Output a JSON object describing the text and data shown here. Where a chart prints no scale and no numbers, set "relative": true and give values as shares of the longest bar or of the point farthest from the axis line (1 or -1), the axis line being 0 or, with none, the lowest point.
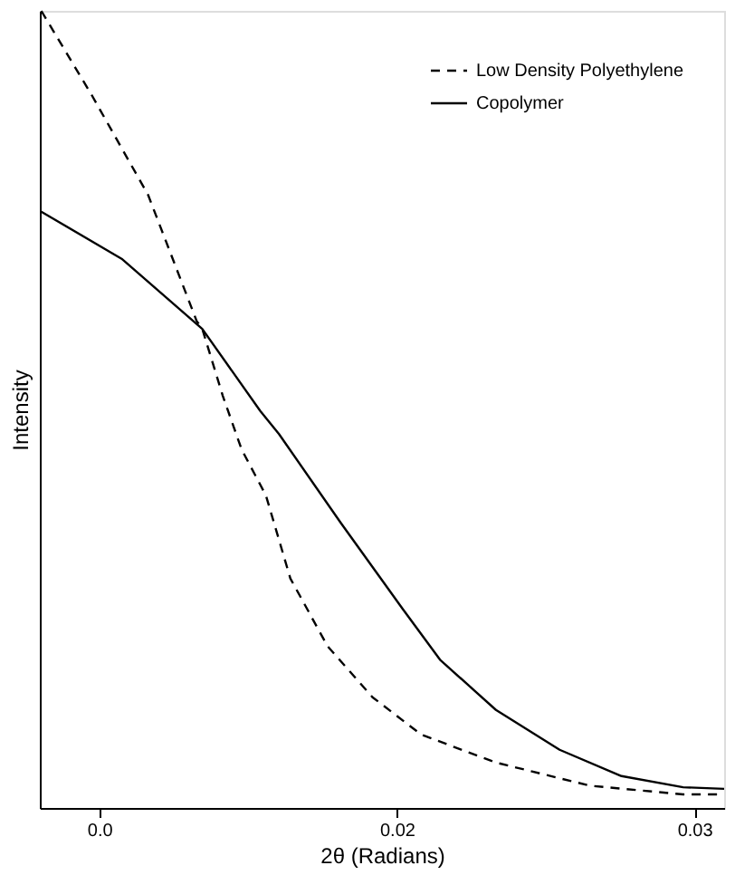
{
  "chart_data": {
    "type": "line",
    "relative": true,
    "xlabel": "2θ (Radians)",
    "ylabel": "Intensity",
    "xlim": [
      0.008,
      0.031
    ],
    "xticks": [
      {
        "value": 0.01,
        "label": "0.0"
      },
      0.02,
      0.03
    ],
    "legend": "top right",
    "grid": false,
    "series": [
      {
        "name": "Low Density Polyethylene",
        "color": "#000000",
        "line_style": "dashed",
        "x": [
          0.00805,
          0.00975,
          0.01164,
          0.01327,
          0.01346,
          0.01415,
          0.01478,
          0.0156,
          0.01642,
          0.01767,
          0.01918,
          0.02082,
          0.02333,
          0.02648,
          0.02962,
          0.031
        ],
        "values": [
          1.0,
          0.894,
          0.769,
          0.611,
          0.601,
          0.517,
          0.45,
          0.392,
          0.288,
          0.203,
          0.139,
          0.092,
          0.057,
          0.028,
          0.017,
          0.017
        ]
      },
      {
        "name": "Copolymer",
        "color": "#000000",
        "line_style": "solid",
        "x": [
          0.00805,
          0.01075,
          0.01346,
          0.01541,
          0.01604,
          0.01811,
          0.02019,
          0.02145,
          0.02333,
          0.02547,
          0.02755,
          0.02962,
          0.031
        ],
        "values": [
          0.748,
          0.689,
          0.601,
          0.498,
          0.469,
          0.358,
          0.25,
          0.186,
          0.123,
          0.073,
          0.04,
          0.026,
          0.024
        ]
      }
    ]
  }
}
